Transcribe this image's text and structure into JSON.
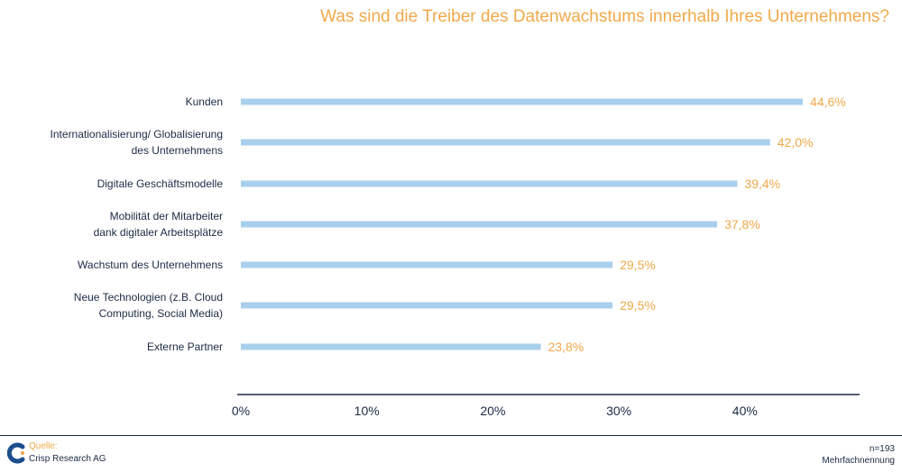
{
  "title": "Was sind die Treiber des Datenwachstums innerhalb Ihres Unternehmens?",
  "chart_data": {
    "type": "bar",
    "orientation": "horizontal",
    "title": "Was sind die Treiber des Datenwachstums innerhalb Ihres Unternehmens?",
    "categories": [
      [
        "Kunden"
      ],
      [
        "Internationalisierung/ Globalisierung",
        "des Unternehmens"
      ],
      [
        "Digitale Geschäftsmodelle"
      ],
      [
        "Mobilität der Mitarbeiter",
        "dank digitaler Arbeitsplätze"
      ],
      [
        "Wachstum des Unternehmens"
      ],
      [
        "Neue Technologien (z.B. Cloud",
        "Computing, Social Media)"
      ],
      [
        "Externe Partner"
      ]
    ],
    "values": [
      44.6,
      42.0,
      39.4,
      37.8,
      29.5,
      29.5,
      23.8
    ],
    "value_labels": [
      "44,6%",
      "42,0%",
      "39,4%",
      "37,8%",
      "29,5%",
      "29,5%",
      "23,8%"
    ],
    "x_ticks": [
      0,
      10,
      20,
      30,
      40
    ],
    "x_tick_labels": [
      "0%",
      "10%",
      "20%",
      "30%",
      "40%"
    ],
    "xlim": [
      0,
      49
    ],
    "grid": false,
    "bar_color": "#a8cfec",
    "label_color": "#f0a94a",
    "axis_color": "#1c2a44"
  },
  "footer": {
    "source_label": "Quelle:",
    "source_name": "Crisp Research AG",
    "sample": "n=193",
    "note": "Mehrfachnennung"
  }
}
